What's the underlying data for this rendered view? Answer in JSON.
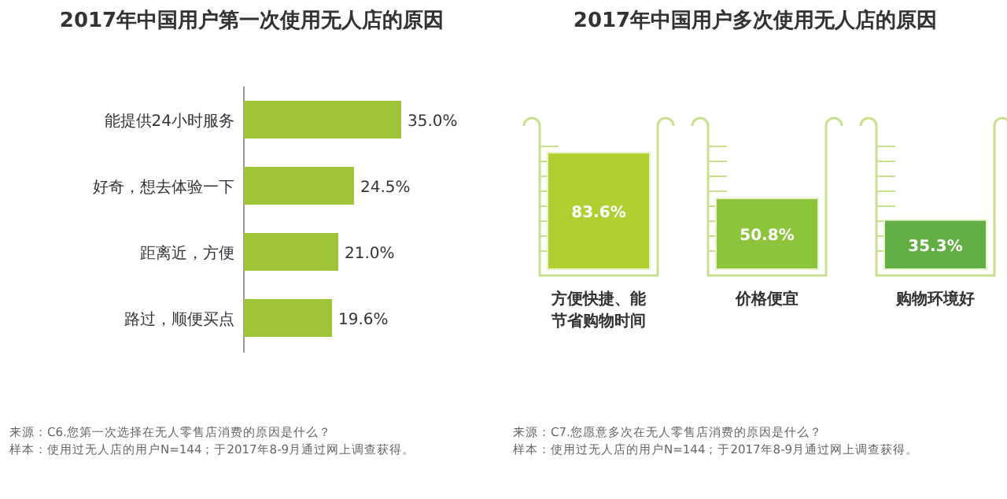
{
  "chart_data": [
    {
      "type": "bar",
      "orientation": "horizontal",
      "title": "2017年中国用户第一次使用无人店的原因",
      "categories": [
        "能提供24小时服务",
        "好奇，想去体验一下",
        "距离近，方便",
        "路过，顺便买点"
      ],
      "values": [
        35.0,
        24.5,
        21.0,
        19.6
      ],
      "color": "#9fc43a",
      "value_labels": [
        "35.0%",
        "24.5%",
        "21.0%",
        "19.6%"
      ],
      "annotations": [
        "来源：C6.您第一次选择在无人零售店消费的原因是什么？",
        "样本：使用过无人店的用户N=144；于2017年8-9月通过网上调查获得。"
      ]
    },
    {
      "type": "bar",
      "title": "2017年中国用户多次使用无人店的原因",
      "categories": [
        "方便快捷、能节省购物时间",
        "价格便宜",
        "购物环境好"
      ],
      "values": [
        83.6,
        50.8,
        35.3
      ],
      "colors": [
        "#b1cf30",
        "#8cc43c",
        "#63ad45"
      ],
      "value_labels": [
        "83.6%",
        "50.8%",
        "35.3%"
      ],
      "annotations": [
        "来源：C7.您愿意多次在无人零售店消费的原因是什么？",
        "样本：使用过无人店的用户N=144；于2017年8-9月通过网上调查获得。"
      ]
    }
  ]
}
